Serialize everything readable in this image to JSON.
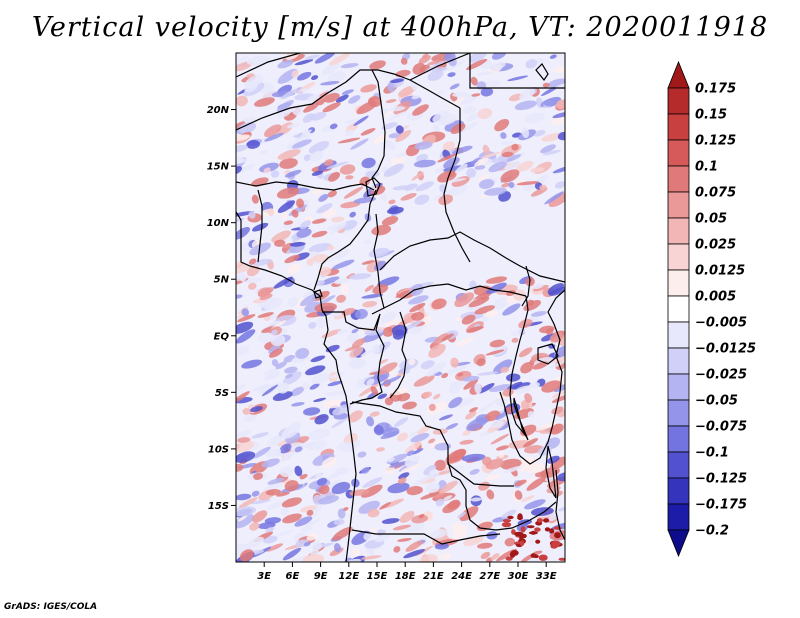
{
  "title": "Vertical velocity [m/s] at 400hPa, VT: 2020011918",
  "credit": "GrADS: IGES/COLA",
  "map": {
    "lon_range": [
      0,
      35
    ],
    "lat_range": [
      -20,
      25
    ],
    "lat_ticks": [
      {
        "value": 20,
        "label": "20N"
      },
      {
        "value": 15,
        "label": "15N"
      },
      {
        "value": 10,
        "label": "10N"
      },
      {
        "value": 5,
        "label": "5N"
      },
      {
        "value": 0,
        "label": "EQ"
      },
      {
        "value": -5,
        "label": "5S"
      },
      {
        "value": -10,
        "label": "10S"
      },
      {
        "value": -15,
        "label": "15S"
      }
    ],
    "lon_ticks": [
      {
        "value": 3,
        "label": "3E"
      },
      {
        "value": 6,
        "label": "6E"
      },
      {
        "value": 9,
        "label": "9E"
      },
      {
        "value": 12,
        "label": "12E"
      },
      {
        "value": 15,
        "label": "15E"
      },
      {
        "value": 18,
        "label": "18E"
      },
      {
        "value": 21,
        "label": "21E"
      },
      {
        "value": 24,
        "label": "24E"
      },
      {
        "value": 27,
        "label": "27E"
      },
      {
        "value": 30,
        "label": "30E"
      },
      {
        "value": 33,
        "label": "33E"
      }
    ]
  },
  "colorbar": {
    "levels": [
      "0.175",
      "0.15",
      "0.125",
      "0.1",
      "0.075",
      "0.05",
      "0.025",
      "0.0125",
      "0.005",
      "−0.005",
      "−0.0125",
      "−0.025",
      "−0.05",
      "−0.075",
      "−0.1",
      "−0.125",
      "−0.175",
      "−0.2"
    ],
    "colors": [
      "#a01818",
      "#b52a2a",
      "#c84040",
      "#d65a5a",
      "#e07a7a",
      "#ea9898",
      "#f2b6b6",
      "#f8d4d4",
      "#fdeeee",
      "#ffffff",
      "#e8e8fc",
      "#d0d0f8",
      "#b4b4f2",
      "#9494ea",
      "#7474e0",
      "#5252d0",
      "#3434bc",
      "#1c1ca8",
      "#0c0c8c"
    ]
  }
}
